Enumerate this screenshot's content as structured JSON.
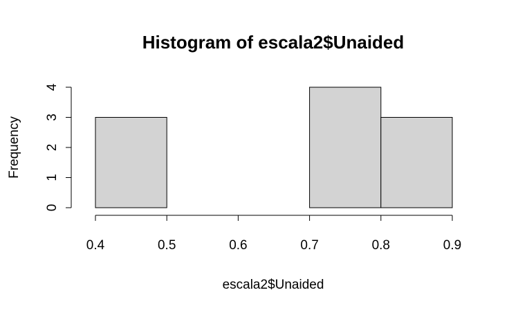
{
  "chart_data": {
    "type": "bar",
    "title": "Histogram of escala2$Unaided",
    "xlabel": "escala2$Unaided",
    "ylabel": "Frequency",
    "bins": [
      {
        "from": 0.4,
        "to": 0.5,
        "count": 3
      },
      {
        "from": 0.5,
        "to": 0.6,
        "count": 0
      },
      {
        "from": 0.6,
        "to": 0.7,
        "count": 0
      },
      {
        "from": 0.7,
        "to": 0.8,
        "count": 4
      },
      {
        "from": 0.8,
        "to": 0.9,
        "count": 3
      }
    ],
    "xlim": [
      0.4,
      0.9
    ],
    "ylim": [
      0,
      4
    ],
    "xticks": [
      "0.4",
      "0.5",
      "0.6",
      "0.7",
      "0.8",
      "0.9"
    ],
    "yticks": [
      "0",
      "1",
      "2",
      "3",
      "4"
    ],
    "bar_color": "#d3d3d3",
    "grid": false
  }
}
